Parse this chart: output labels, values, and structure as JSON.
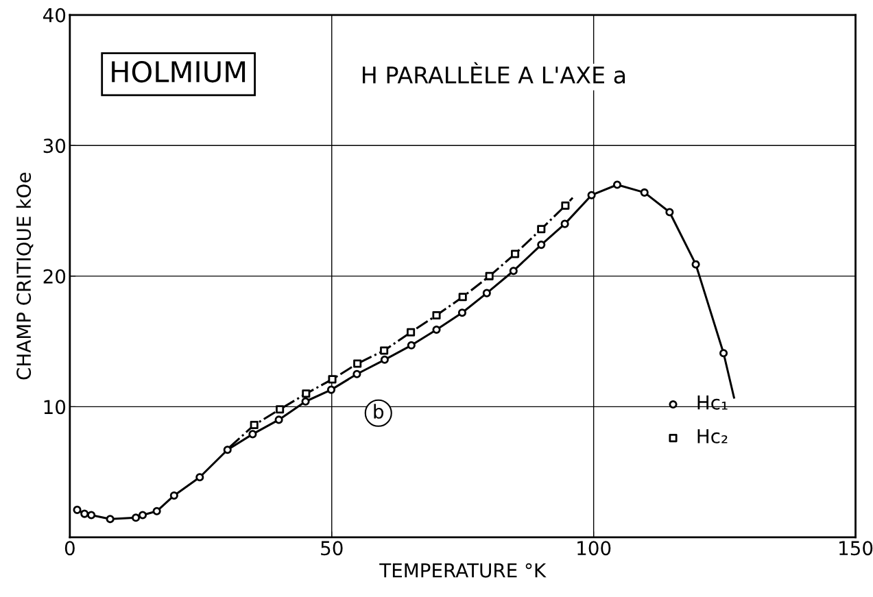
{
  "chart_data": {
    "type": "scatter",
    "xlabel": "TEMPERATURE °K",
    "ylabel": "CHAMP CRITIQUE kOe",
    "annotations": [
      "HOLMIUM",
      "H PARALLÈLE A L'AXE a",
      "b"
    ],
    "xlim": [
      0,
      150
    ],
    "xticks": [
      0,
      50,
      100,
      150
    ],
    "ylim": [
      0,
      40
    ],
    "yticks": [
      10,
      20,
      30,
      40
    ],
    "grid": true,
    "legend": "bottom right",
    "series": [
      {
        "type": "line",
        "color": "#000000",
        "marker": "none",
        "line_style": "solid",
        "x": [
          1.4,
          2.8,
          4.1,
          7.7,
          12.6,
          13.9,
          16.6,
          19.9,
          24.8,
          30.1,
          34.9,
          39.9,
          45.0,
          49.9,
          54.8,
          60.1,
          65.2,
          70.0,
          74.9,
          79.6,
          84.7,
          90.0,
          94.5,
          99.6,
          104.5,
          109.7,
          114.5,
          119.5,
          124.8,
          126.8
        ],
        "values": [
          2.1,
          1.8,
          1.7,
          1.4,
          1.5,
          1.7,
          2.0,
          3.2,
          4.6,
          6.7,
          7.9,
          9.0,
          10.4,
          11.3,
          12.5,
          13.6,
          14.7,
          15.9,
          17.2,
          18.7,
          20.4,
          22.4,
          24.0,
          26.2,
          27.0,
          26.4,
          24.9,
          20.9,
          14.1,
          10.7
        ]
      },
      {
        "type": "line",
        "color": "#000000",
        "marker": "none",
        "line_style": "dashdot",
        "x": [
          30.5,
          35.2,
          40.1,
          45.1,
          50.1,
          54.9,
          60.0,
          65.1,
          70.0,
          75.0,
          80.1,
          85.0,
          90.0,
          94.6,
          96.0
        ],
        "values": [
          6.9,
          8.6,
          9.8,
          11.0,
          12.1,
          13.3,
          14.3,
          15.7,
          17.0,
          18.4,
          20.0,
          21.7,
          23.6,
          25.4,
          26.0
        ]
      },
      {
        "name": "Hc₁",
        "color": "#000000",
        "marker": "circle",
        "x": [
          1.4,
          2.8,
          4.1,
          7.7,
          12.6,
          13.9,
          16.6,
          19.9,
          24.8,
          30.1,
          34.9,
          39.9,
          45.0,
          49.9,
          54.8,
          60.1,
          65.2,
          70.0,
          74.9,
          79.6,
          84.7,
          90.0,
          94.5,
          99.6,
          104.5,
          109.7,
          114.5,
          119.5,
          124.8
        ],
        "values": [
          2.1,
          1.8,
          1.7,
          1.4,
          1.5,
          1.7,
          2.0,
          3.2,
          4.6,
          6.7,
          7.9,
          9.0,
          10.4,
          11.3,
          12.5,
          13.6,
          14.7,
          15.9,
          17.2,
          18.7,
          20.4,
          22.4,
          24.0,
          26.2,
          27.0,
          26.4,
          24.9,
          20.9,
          14.1
        ]
      },
      {
        "name": "Hc₂",
        "color": "#000000",
        "marker": "square",
        "x": [
          35.2,
          40.1,
          45.1,
          50.1,
          54.9,
          60.0,
          65.1,
          70.0,
          75.0,
          80.1,
          85.0,
          90.0,
          94.6
        ],
        "values": [
          8.6,
          9.8,
          11.0,
          12.1,
          13.3,
          14.3,
          15.7,
          17.0,
          18.4,
          20.0,
          21.7,
          23.6,
          25.4
        ]
      }
    ]
  }
}
